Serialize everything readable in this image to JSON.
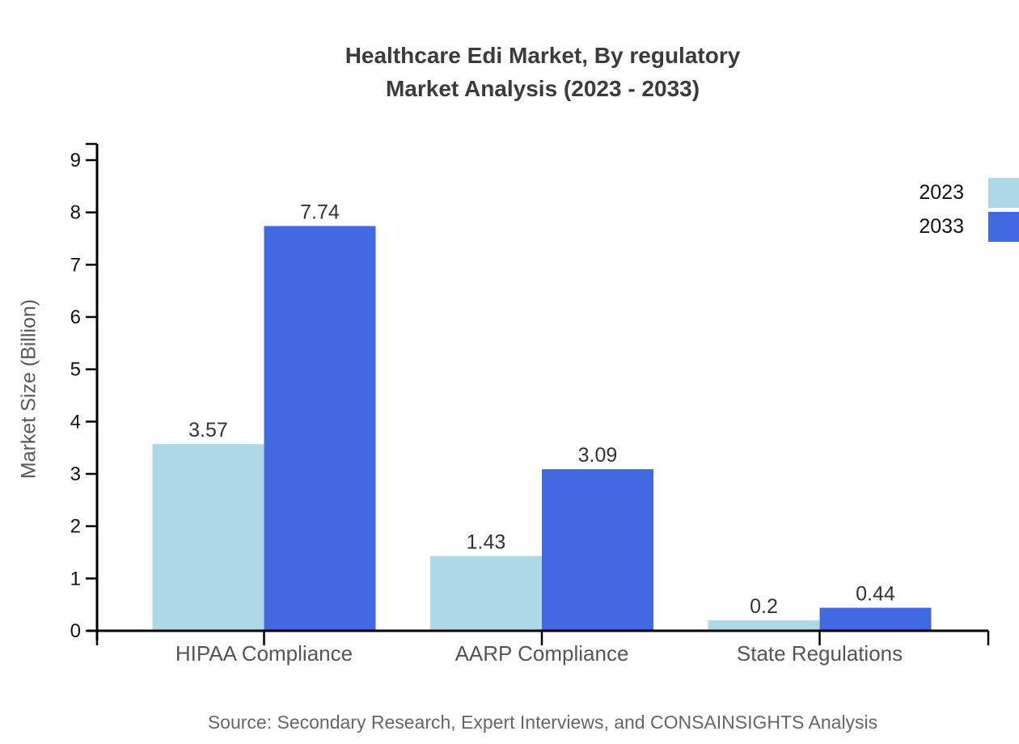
{
  "chart_data": {
    "type": "bar",
    "title_lines": [
      "Healthcare Edi Market, By regulatory",
      "Market Analysis (2023 - 2033)"
    ],
    "title": "Healthcare Edi Market, By regulatory Market Analysis (2023 - 2033)",
    "xlabel": "",
    "ylabel": "Market Size (Billion)",
    "categories": [
      "HIPAA Compliance",
      "AARP Compliance",
      "State Regulations"
    ],
    "series": [
      {
        "name": "2023",
        "color": "#ADD8E6",
        "values": [
          3.57,
          1.43,
          0.2
        ],
        "value_labels": [
          "3.57",
          "1.43",
          "0.2"
        ]
      },
      {
        "name": "2033",
        "color": "#4169E1",
        "values": [
          7.74,
          3.09,
          0.44
        ],
        "value_labels": [
          "7.74",
          "3.09",
          "0.44"
        ]
      }
    ],
    "ylim": [
      0,
      9
    ],
    "yticks": [
      0,
      1,
      2,
      3,
      4,
      5,
      6,
      7,
      8,
      9
    ],
    "grid": false,
    "legend_position": "right",
    "axis_color": "#000000",
    "source": "Source: Secondary Research, Expert Interviews, and CONSAINSIGHTS Analysis"
  }
}
